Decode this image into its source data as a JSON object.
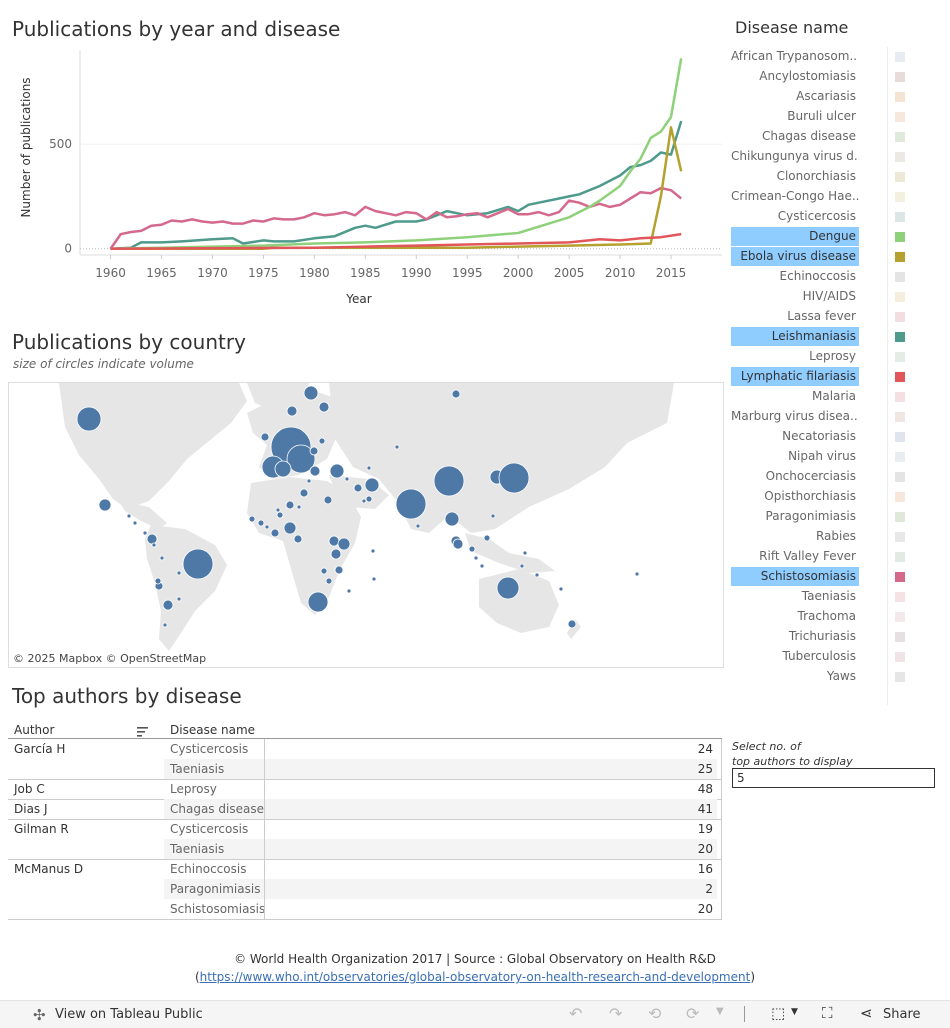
{
  "line_title": "Publications by year and disease",
  "map_title": "Publications by country",
  "map_subtitle": "size of circles indicate volume",
  "map_credit": "© 2025 Mapbox  © OpenStreetMap",
  "table_title": "Top authors by disease",
  "legend_title": "Disease name",
  "colors": {
    "selected_bg": "#8fccff",
    "map_circle": "#4e79a7",
    "land": "#e6e6e6"
  },
  "chart_data": {
    "type": "line",
    "xlabel": "Year",
    "ylabel": "Number of publications",
    "xlim": [
      1957,
      2020
    ],
    "ylim": [
      -30,
      950
    ],
    "x_ticks": [
      1960,
      1965,
      1970,
      1975,
      1980,
      1985,
      1990,
      1995,
      2000,
      2005,
      2010,
      2015
    ],
    "y_ticks": [
      0,
      500
    ],
    "series": [
      {
        "name": "Leishmaniasis",
        "color": "#4e9a8d",
        "x": [
          1960,
          1962,
          1963,
          1965,
          1967,
          1970,
          1972,
          1973,
          1975,
          1976,
          1978,
          1980,
          1982,
          1984,
          1985,
          1986,
          1988,
          1990,
          1991,
          1992,
          1993,
          1995,
          1997,
          1999,
          2000,
          2001,
          2002,
          2004,
          2005,
          2006,
          2008,
          2010,
          2011,
          2012,
          2013,
          2014,
          2015,
          2016
        ],
        "y": [
          0,
          5,
          30,
          30,
          35,
          45,
          50,
          25,
          40,
          35,
          35,
          50,
          60,
          100,
          110,
          100,
          130,
          130,
          140,
          160,
          180,
          160,
          170,
          200,
          180,
          210,
          220,
          240,
          250,
          260,
          300,
          350,
          390,
          400,
          420,
          460,
          450,
          610
        ]
      },
      {
        "name": "Schistosomiasis",
        "color": "#d4698b",
        "x": [
          1960,
          1961,
          1962,
          1963,
          1964,
          1965,
          1966,
          1967,
          1968,
          1969,
          1970,
          1971,
          1972,
          1973,
          1974,
          1975,
          1976,
          1977,
          1978,
          1979,
          1980,
          1981,
          1982,
          1983,
          1984,
          1985,
          1986,
          1987,
          1988,
          1989,
          1990,
          1991,
          1992,
          1993,
          1994,
          1995,
          1996,
          1997,
          1998,
          1999,
          2000,
          2001,
          2002,
          2003,
          2004,
          2005,
          2006,
          2007,
          2008,
          2009,
          2010,
          2011,
          2012,
          2013,
          2014,
          2015,
          2016
        ],
        "y": [
          0,
          70,
          80,
          85,
          110,
          115,
          135,
          130,
          140,
          130,
          125,
          130,
          120,
          120,
          135,
          130,
          145,
          140,
          140,
          150,
          170,
          160,
          165,
          175,
          160,
          200,
          180,
          170,
          160,
          175,
          170,
          140,
          175,
          150,
          155,
          165,
          170,
          150,
          170,
          190,
          165,
          165,
          175,
          160,
          175,
          230,
          220,
          200,
          215,
          200,
          210,
          240,
          270,
          265,
          290,
          280,
          240
        ]
      },
      {
        "name": "Dengue",
        "color": "#8fd17a",
        "x": [
          1960,
          1965,
          1970,
          1975,
          1980,
          1985,
          1990,
          1995,
          2000,
          2003,
          2005,
          2007,
          2008,
          2010,
          2011,
          2012,
          2013,
          2014,
          2015,
          2016
        ],
        "y": [
          0,
          5,
          10,
          15,
          25,
          30,
          40,
          55,
          75,
          120,
          150,
          200,
          230,
          300,
          370,
          430,
          530,
          560,
          630,
          910
        ]
      },
      {
        "name": "Ebola virus disease",
        "color": "#b5a12f",
        "x": [
          1960,
          1975,
          1976,
          1980,
          1995,
          2000,
          2005,
          2010,
          2013,
          2014,
          2015,
          2016
        ],
        "y": [
          0,
          0,
          5,
          5,
          5,
          10,
          15,
          20,
          25,
          250,
          580,
          370
        ]
      },
      {
        "name": "Lymphatic filariasis",
        "color": "#e15759",
        "x": [
          1960,
          1980,
          1985,
          1990,
          1995,
          2000,
          2005,
          2008,
          2010,
          2012,
          2014,
          2016
        ],
        "y": [
          0,
          5,
          10,
          15,
          20,
          25,
          30,
          45,
          40,
          50,
          55,
          70
        ]
      }
    ]
  },
  "legend_items": [
    {
      "label": "African Trypanosom..",
      "color": "#e8ecf2",
      "selected": false
    },
    {
      "label": "Ancylostomiasis",
      "color": "#e8dcd8",
      "selected": false
    },
    {
      "label": "Ascariasis",
      "color": "#f6e4d2",
      "selected": false
    },
    {
      "label": "Buruli ulcer",
      "color": "#f6e8dc",
      "selected": false
    },
    {
      "label": "Chagas disease",
      "color": "#e0eadc",
      "selected": false
    },
    {
      "label": "Chikungunya virus d..",
      "color": "#ece8e4",
      "selected": false
    },
    {
      "label": "Clonorchiasis",
      "color": "#eee8d6",
      "selected": false
    },
    {
      "label": "Crimean-Congo Hae..",
      "color": "#f4f0e0",
      "selected": false
    },
    {
      "label": "Cysticercosis",
      "color": "#dde6e6",
      "selected": false
    },
    {
      "label": "Dengue",
      "color": "#8fd17a",
      "selected": true
    },
    {
      "label": "Ebola virus disease",
      "color": "#b5a12f",
      "selected": true
    },
    {
      "label": "Echinoccosis",
      "color": "#e4e4e4",
      "selected": false
    },
    {
      "label": "HIV/AIDS",
      "color": "#f6eedc",
      "selected": false
    },
    {
      "label": "Lassa fever",
      "color": "#f2dde2",
      "selected": false
    },
    {
      "label": "Leishmaniasis",
      "color": "#4e9a8d",
      "selected": true
    },
    {
      "label": "Leprosy",
      "color": "#e4ece8",
      "selected": false
    },
    {
      "label": "Lymphatic filariasis",
      "color": "#e15759",
      "selected": true
    },
    {
      "label": "Malaria",
      "color": "#f4e0e2",
      "selected": false
    },
    {
      "label": "Marburg virus disea..",
      "color": "#f0e6e2",
      "selected": false
    },
    {
      "label": "Necatoriasis",
      "color": "#e0e4ec",
      "selected": false
    },
    {
      "label": "Nipah virus",
      "color": "#eaedf2",
      "selected": false
    },
    {
      "label": "Onchocerciasis",
      "color": "#e4e4e4",
      "selected": false
    },
    {
      "label": "Opisthorchiasis",
      "color": "#f6e6dc",
      "selected": false
    },
    {
      "label": "Paragonimiasis",
      "color": "#e0e8dc",
      "selected": false
    },
    {
      "label": "Rabies",
      "color": "#e8e8e8",
      "selected": false
    },
    {
      "label": "Rift Valley Fever",
      "color": "#e2eae6",
      "selected": false
    },
    {
      "label": "Schistosomiasis",
      "color": "#d4698b",
      "selected": true
    },
    {
      "label": "Taeniasis",
      "color": "#f4e2e4",
      "selected": false
    },
    {
      "label": "Trachoma",
      "color": "#f4eaec",
      "selected": false
    },
    {
      "label": "Trichuriasis",
      "color": "#e6e0e2",
      "selected": false
    },
    {
      "label": "Tuberculosis",
      "color": "#f0e4e6",
      "selected": false
    },
    {
      "label": "Yaws",
      "color": "#e6e6e6",
      "selected": false
    }
  ],
  "table": {
    "col_author": "Author",
    "col_disease": "Disease name",
    "rows": [
      {
        "author": "García H",
        "disease": "Cysticercosis",
        "value": "24"
      },
      {
        "author": "",
        "disease": "Taeniasis",
        "value": "25"
      },
      {
        "author": "Job C",
        "disease": "Leprosy",
        "value": "48"
      },
      {
        "author": "Dias J",
        "disease": "Chagas disease",
        "value": "41"
      },
      {
        "author": "Gilman R",
        "disease": "Cysticercosis",
        "value": "19"
      },
      {
        "author": "",
        "disease": "Taeniasis",
        "value": "20"
      },
      {
        "author": "McManus D",
        "disease": "Echinoccosis",
        "value": "16"
      },
      {
        "author": "",
        "disease": "Paragonimiasis",
        "value": "2"
      },
      {
        "author": "",
        "disease": "Schistosomiasis",
        "value": "20"
      }
    ]
  },
  "select_label_line1": "Select no.  of",
  "select_label_line2": "top authors to display",
  "select_value": "5",
  "footer_line1": "© World Health Organization 2017 | Source : Global Observatory on Health R&D",
  "footer_open": "(",
  "footer_link": "https://www.who.int/observatories/global-observatory-on-health-research-and-development",
  "footer_close": ")",
  "toolbar": {
    "view_label": "View on Tableau Public",
    "share_label": "Share"
  }
}
